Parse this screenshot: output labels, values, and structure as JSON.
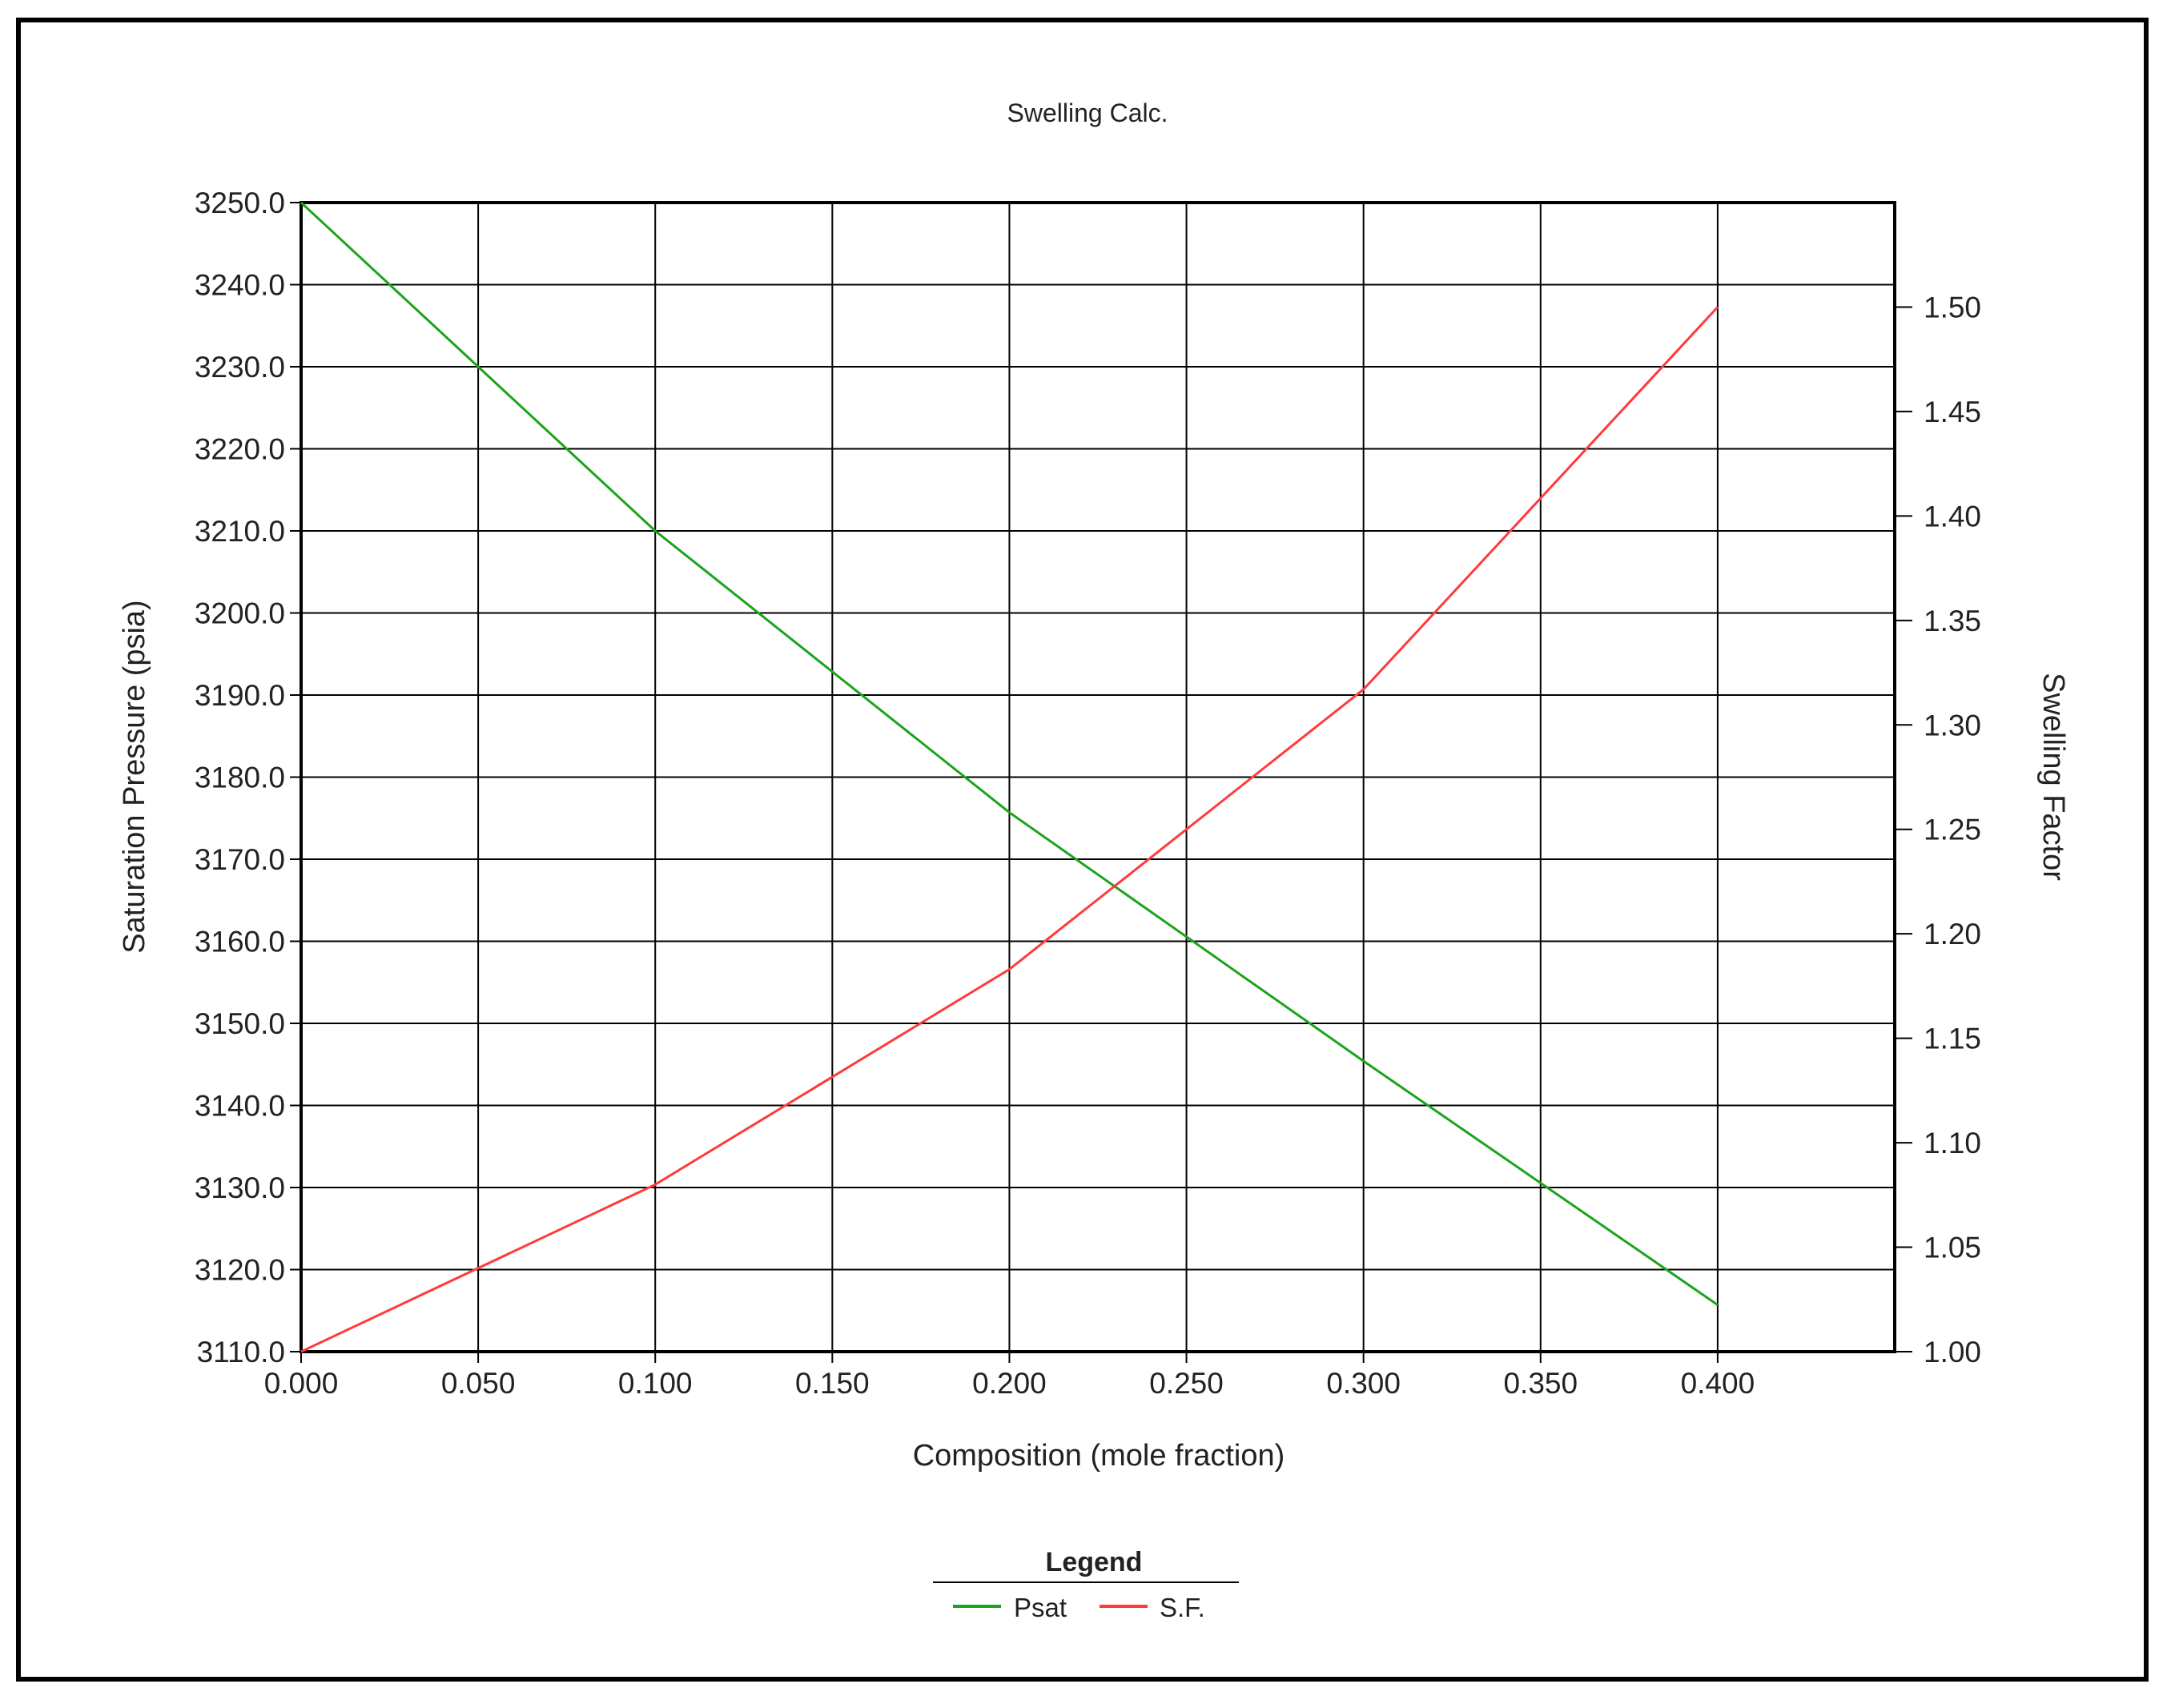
{
  "chart_data": {
    "type": "line",
    "title": "Swelling Calc.",
    "xlabel": "Composition (mole fraction)",
    "ylabel": "Saturation Pressure (psia)",
    "y2label": "Swelling Factor",
    "xlim": [
      0,
      0.45
    ],
    "ylim": [
      3110,
      3250
    ],
    "y2lim": [
      1.0,
      1.55
    ],
    "x_ticks": [
      "0.000",
      "0.050",
      "0.100",
      "0.150",
      "0.200",
      "0.250",
      "0.300",
      "0.350",
      "0.400"
    ],
    "y_ticks": [
      "3110.0",
      "3120.0",
      "3130.0",
      "3140.0",
      "3150.0",
      "3160.0",
      "3170.0",
      "3180.0",
      "3190.0",
      "3200.0",
      "3210.0",
      "3220.0",
      "3230.0",
      "3240.0",
      "3250.0"
    ],
    "y2_ticks": [
      "1.00",
      "1.05",
      "1.10",
      "1.15",
      "1.20",
      "1.25",
      "1.30",
      "1.35",
      "1.40",
      "1.45",
      "1.50"
    ],
    "grid": true,
    "legend": {
      "title": "Legend",
      "position": "bottom"
    },
    "series": [
      {
        "name": "Psat",
        "axis": "left",
        "color": "#1aa41a",
        "x": [
          0.0,
          0.1,
          0.2,
          0.3,
          0.4
        ],
        "y": [
          3250.0,
          3210.0,
          3175.7,
          3145.4,
          3115.7
        ]
      },
      {
        "name": "S.F.",
        "axis": "right",
        "color": "#ff3b3b",
        "x": [
          0.0,
          0.1,
          0.2,
          0.3,
          0.4
        ],
        "y": [
          1.0,
          1.08,
          1.183,
          1.317,
          1.5
        ]
      }
    ]
  }
}
